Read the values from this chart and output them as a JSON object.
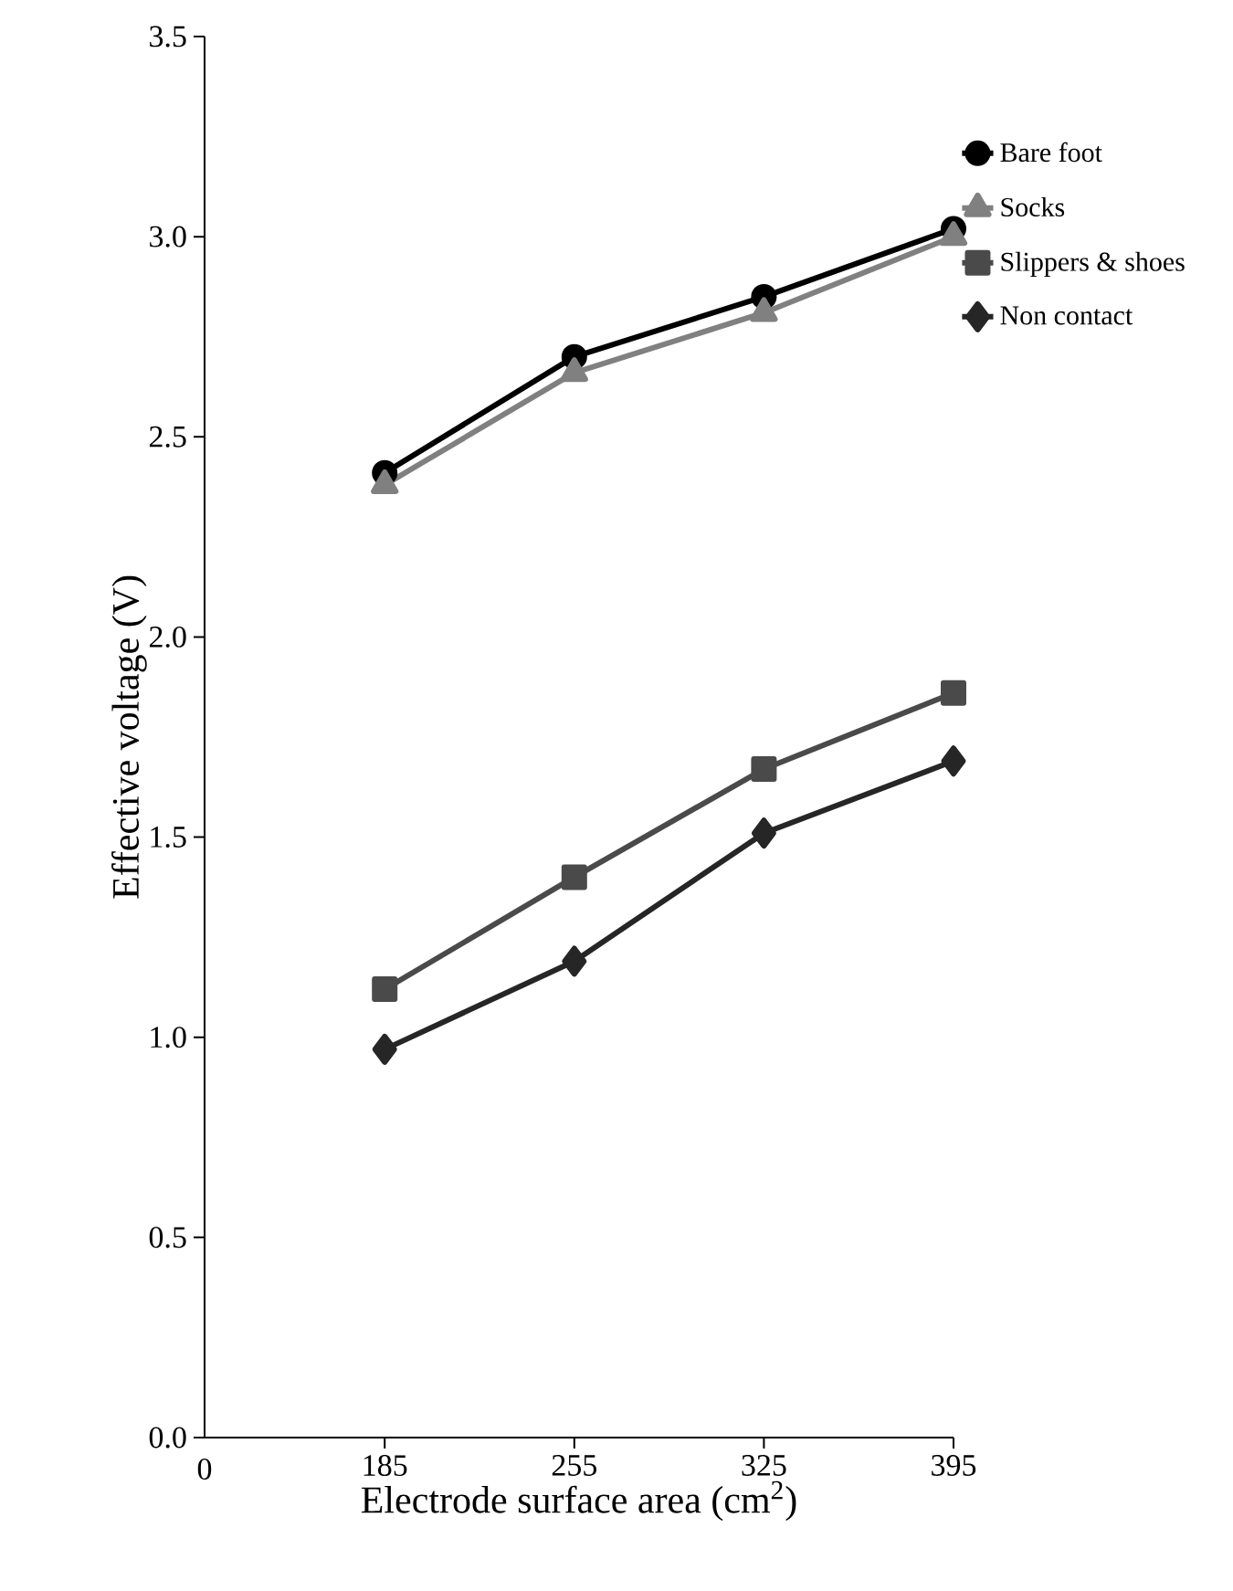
{
  "chart_data": {
    "type": "line",
    "xlabel": "Electrode surface area (cm$^{2}$)",
    "ylabel": "Effective voltage (V)",
    "categories": [
      "185",
      "255",
      "325",
      "395"
    ],
    "series": [
      {
        "name": "Bare foot",
        "color": "#000000",
        "marker": "circle",
        "values": [
          2.41,
          2.7,
          2.85,
          3.02
        ]
      },
      {
        "name": "Socks",
        "color": "#808080",
        "marker": "triangle",
        "values": [
          2.38,
          2.66,
          2.81,
          3.0
        ]
      },
      {
        "name": "Slippers & shoes",
        "color": "#4a4a4a",
        "marker": "square",
        "values": [
          1.12,
          1.4,
          1.67,
          1.86
        ]
      },
      {
        "name": "Non contact",
        "color": "#262626",
        "marker": "diamond",
        "values": [
          0.97,
          1.19,
          1.51,
          1.69
        ]
      }
    ],
    "ylim": [
      0,
      3.5
    ],
    "yticks": [
      {
        "value": 0,
        "label": "0.0"
      },
      0.5,
      {
        "value": 1,
        "label": "1.0"
      },
      1.5,
      {
        "value": 2,
        "label": "2.0"
      },
      2.5,
      {
        "value": 3,
        "label": "3.0"
      },
      3.5
    ],
    "annotations": [
      "0"
    ],
    "legend": "right",
    "grid": false,
    "line_style": "solid"
  }
}
